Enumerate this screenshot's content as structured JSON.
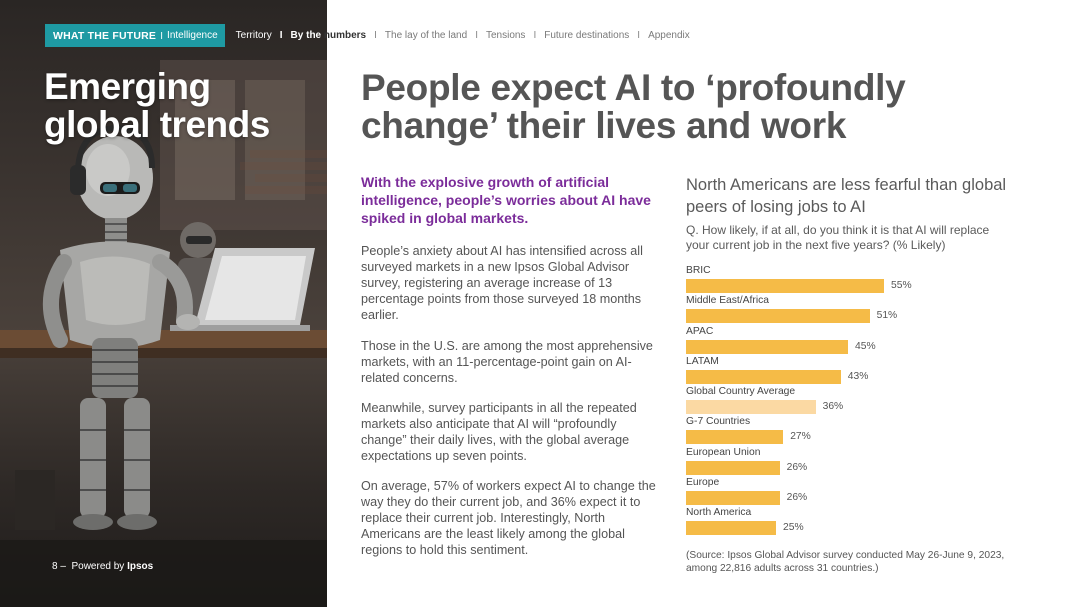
{
  "nav": {
    "brand_bold": "WHAT THE FUTURE",
    "brand_separator": "I",
    "brand_sub": "Intelligence",
    "items": [
      "Territory",
      "By the numbers",
      "The lay of the land",
      "Tensions",
      "Future destinations",
      "Appendix"
    ],
    "separator": "I",
    "active_index": 1
  },
  "hero": {
    "title_line1": "Emerging",
    "title_line2": "global trends"
  },
  "footer": {
    "page_number": "8 –",
    "powered_text": "Powered by",
    "powered_brand": "Ipsos"
  },
  "main": {
    "title_line1": "People expect AI to ‘profoundly",
    "title_line2": "change’ their lives and work",
    "lead": "With the explosive growth of artificial intelligence, people’s worries about AI have spiked in global markets.",
    "paragraphs": [
      "People’s anxiety about AI has intensified across all surveyed markets in a new Ipsos Global Advisor survey, registering an average increase of 13 percentage points from those surveyed 18 months earlier.",
      "Those in the U.S. are among the most apprehensive markets, with an 11-percentage-point gain on AI-related concerns.",
      "Meanwhile, survey participants in all the repeated markets also anticipate that AI will “profoundly change” their daily lives, with the global average expectations up seven points.",
      "On average, 57% of workers expect AI to change the way they do their current job, and 36% expect it to replace their current job. Interestingly, North Americans are the least likely among the global regions to hold this sentiment."
    ]
  },
  "chart_data": {
    "type": "bar",
    "orientation": "horizontal",
    "title": "North Americans are less fearful than global peers of losing jobs to AI",
    "question": "Q. How likely, if at all, do you think it is that AI will replace your current job in the next five years? (% Likely)",
    "categories": [
      "BRIC",
      "Middle East/Africa",
      "APAC",
      "LATAM",
      "Global Country Average",
      "G-7 Countries",
      "European Union",
      "Europe",
      "North America"
    ],
    "values": [
      55,
      51,
      45,
      43,
      36,
      27,
      26,
      26,
      25
    ],
    "value_labels": [
      "55%",
      "51%",
      "45%",
      "43%",
      "36%",
      "27%",
      "26%",
      "26%",
      "25%"
    ],
    "highlight_category": "Global Country Average",
    "colors": {
      "bar": "#f5bb47",
      "highlight": "#fbd9a3"
    },
    "source": "(Source: Ipsos Global Advisor survey conducted May 26-June 9, 2023, among 22,816 adults across 31 countries.)"
  },
  "colors": {
    "brand_teal": "#1e9aa3",
    "lead_purple": "#7b2c9a",
    "title_gray": "#555555"
  }
}
